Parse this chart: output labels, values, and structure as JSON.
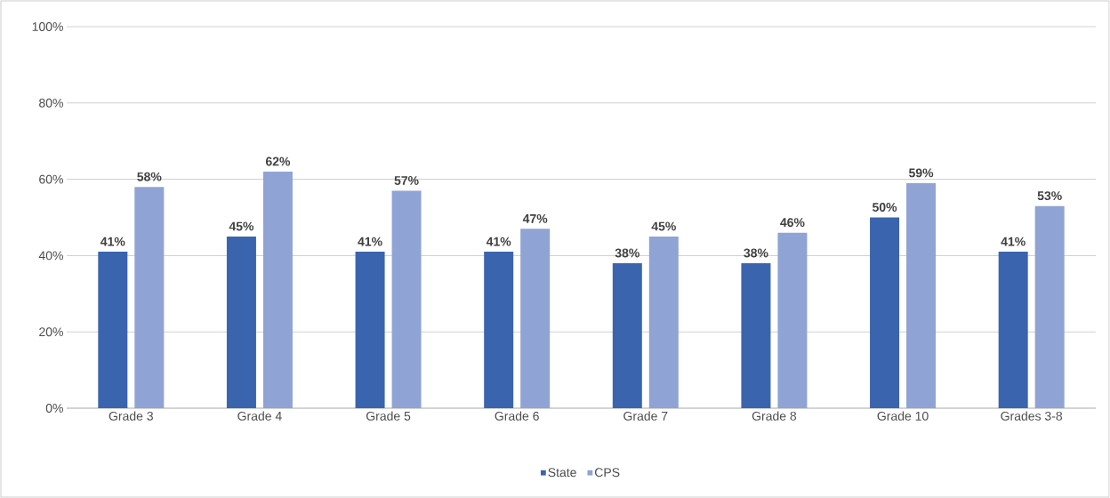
{
  "chart_data": {
    "type": "bar",
    "categories": [
      "Grade 3",
      "Grade 4",
      "Grade 5",
      "Grade 6",
      "Grade 7",
      "Grade 8",
      "Grade 10",
      "Grades 3-8"
    ],
    "series": [
      {
        "name": "State",
        "color": "#3a65ae",
        "values": [
          41,
          45,
          41,
          41,
          38,
          38,
          50,
          41
        ],
        "value_labels": [
          "41%",
          "45%",
          "41%",
          "41%",
          "38%",
          "38%",
          "50%",
          "41%"
        ]
      },
      {
        "name": "CPS",
        "color": "#8fa3d4",
        "values": [
          58,
          62,
          57,
          47,
          45,
          46,
          59,
          53
        ],
        "value_labels": [
          "58%",
          "62%",
          "57%",
          "47%",
          "45%",
          "46%",
          "59%",
          "53%"
        ]
      }
    ],
    "ylim": [
      0,
      100
    ],
    "yticks": [
      {
        "value": 0,
        "label": "0%"
      },
      {
        "value": 20,
        "label": "20%"
      },
      {
        "value": 40,
        "label": "40%"
      },
      {
        "value": 60,
        "label": "60%"
      },
      {
        "value": 80,
        "label": "80%"
      },
      {
        "value": 100,
        "label": "100%"
      }
    ],
    "grid": "y",
    "legend": "bottom"
  }
}
